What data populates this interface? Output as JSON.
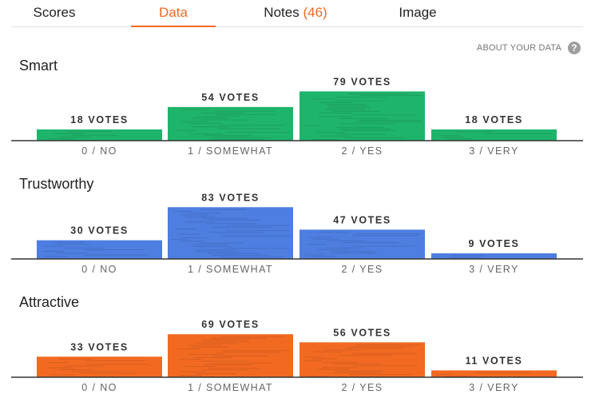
{
  "tabs": [
    {
      "label": "Scores",
      "count": null,
      "active": false
    },
    {
      "label": "Data",
      "count": null,
      "active": true
    },
    {
      "label": "Notes",
      "count": "(46)",
      "active": false
    },
    {
      "label": "Image",
      "count": null,
      "active": false
    }
  ],
  "about_link": "ABOUT YOUR DATA",
  "help_icon": "?",
  "chart_data": [
    {
      "type": "bar",
      "title": "Smart",
      "color": "#1fb46b",
      "categories": [
        "0 / NO",
        "1 / SOMEWHAT",
        "2 / YES",
        "3 / VERY"
      ],
      "values": [
        18,
        54,
        79,
        18
      ],
      "value_labels": [
        "18 VOTES",
        "54 VOTES",
        "79 VOTES",
        "18 VOTES"
      ]
    },
    {
      "type": "bar",
      "title": "Trustworthy",
      "color": "#4d7ee0",
      "categories": [
        "0 / NO",
        "1 / SOMEWHAT",
        "2 / YES",
        "3 / VERY"
      ],
      "values": [
        30,
        83,
        47,
        9
      ],
      "value_labels": [
        "30 VOTES",
        "83 VOTES",
        "47 VOTES",
        "9 VOTES"
      ]
    },
    {
      "type": "bar",
      "title": "Attractive",
      "color": "#f26a22",
      "categories": [
        "0 / NO",
        "1 / SOMEWHAT",
        "2 / YES",
        "3 / VERY"
      ],
      "values": [
        33,
        69,
        56,
        11
      ],
      "value_labels": [
        "33 VOTES",
        "69 VOTES",
        "56 VOTES",
        "11 VOTES"
      ]
    }
  ]
}
